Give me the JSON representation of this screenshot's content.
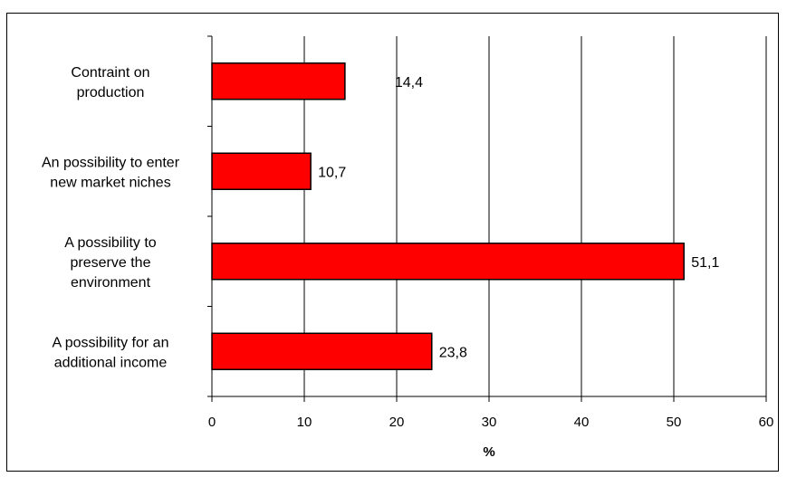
{
  "chart_data": {
    "type": "bar",
    "orientation": "horizontal",
    "categories": [
      "Contraint on production",
      "An possibility to enter new market niches",
      "A possibility to preserve the environment",
      "A possibility for an additional income"
    ],
    "category_label_lines": [
      [
        "Contraint on",
        "production"
      ],
      [
        "An possibility to enter",
        "new market niches"
      ],
      [
        "A possibility to",
        "preserve the",
        "environment"
      ],
      [
        "A possibility for an",
        "additional income"
      ]
    ],
    "values": [
      14.4,
      10.7,
      51.1,
      23.8
    ],
    "data_labels": [
      "14,4",
      "10,7",
      "51,1",
      "23,8"
    ],
    "xlabel": "%",
    "ylabel": "",
    "title": "",
    "xlim": [
      0,
      60
    ],
    "x_ticks": [
      0,
      10,
      20,
      30,
      40,
      50,
      60
    ],
    "x_tick_labels": [
      "0",
      "10",
      "20",
      "30",
      "40",
      "50",
      "60"
    ],
    "grid": "vertical gridlines on",
    "legend": "none",
    "bar_color": "#ff0000",
    "bar_edge_color": "#000000"
  }
}
